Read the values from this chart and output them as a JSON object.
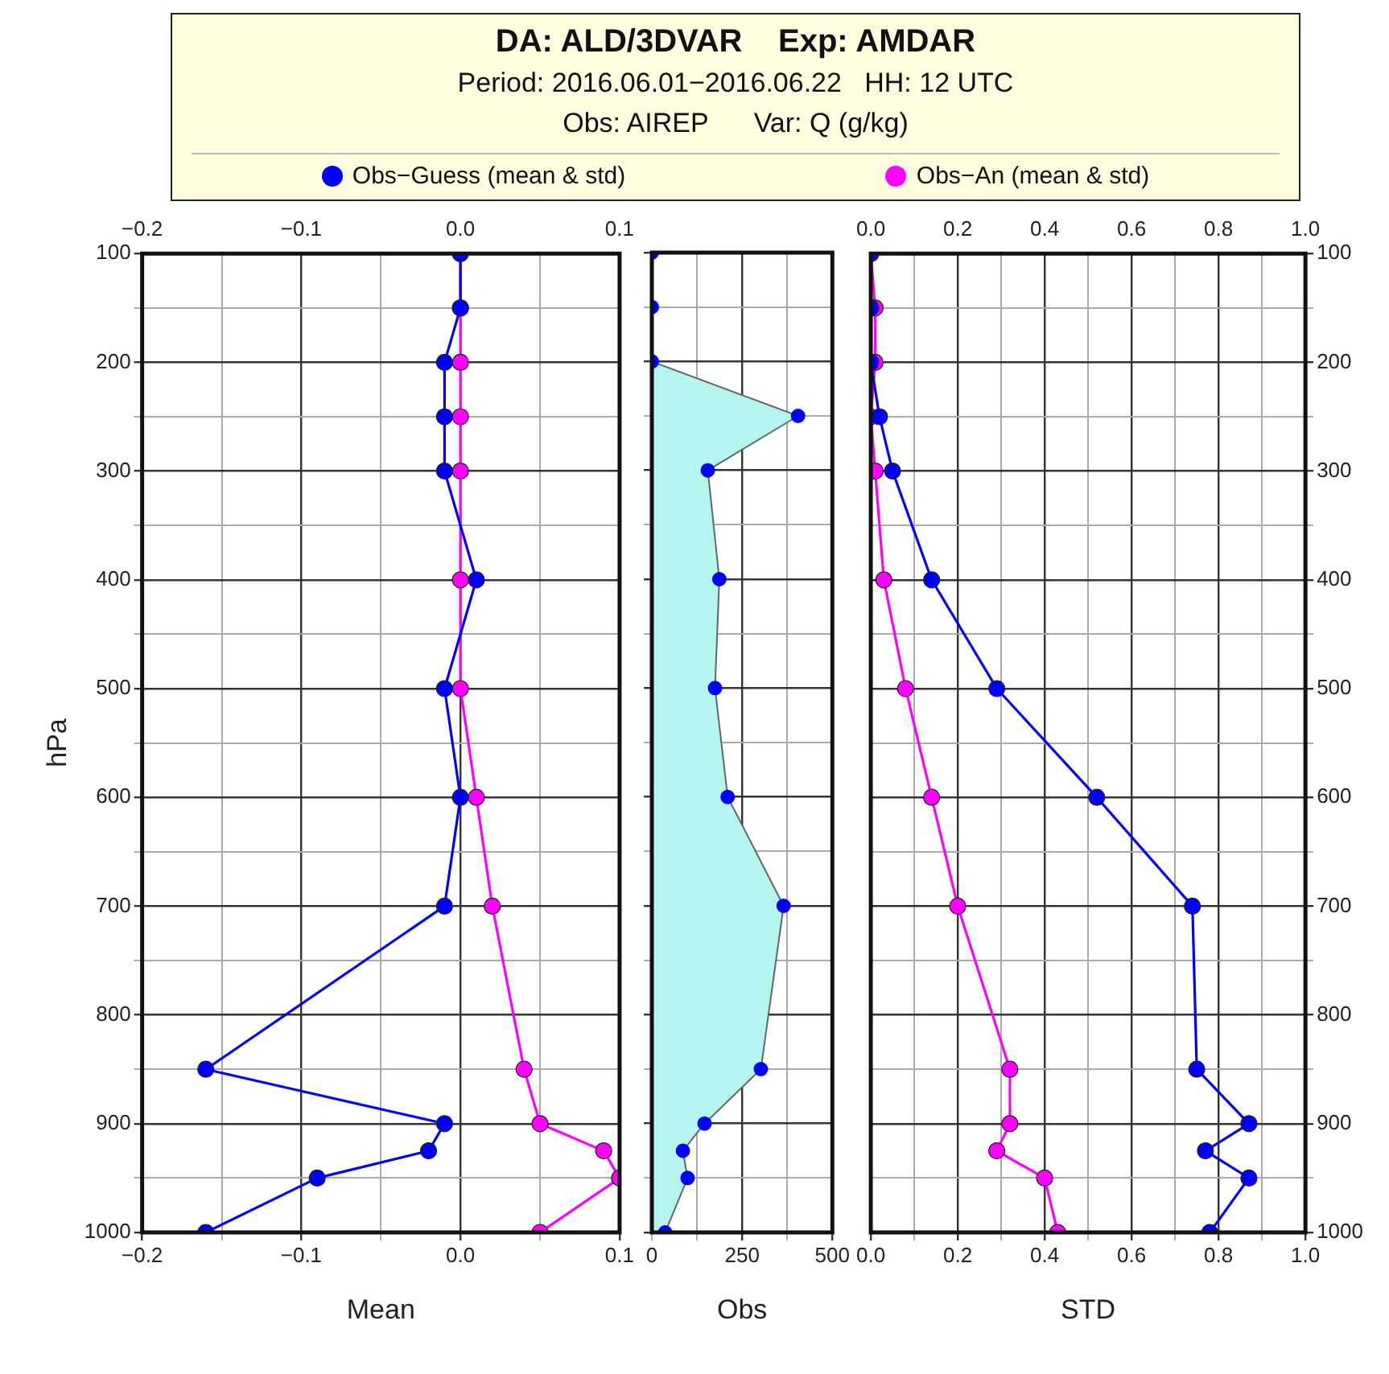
{
  "chart_data": [
    {
      "type": "line",
      "title": "DA: ALD/3DVAR    Exp: AMDAR",
      "subtitle": "Period: 2016.06.01−2016.06.22   HH: 12 UTC\nObs: AIREP      Var: Q (g/kg)",
      "xlabel": "Mean",
      "ylabel": "hPa",
      "orientation": "horizontal",
      "legend": "top",
      "marker": "circle",
      "grid": true,
      "x": [
        100,
        150,
        200,
        250,
        300,
        400,
        500,
        600,
        700,
        850,
        900,
        925,
        950,
        1000
      ],
      "series": [
        {
          "name": "Obs−Guess (mean & std)",
          "color": "#0000ff",
          "values": [
            0,
            0,
            -0.01,
            -0.01,
            -0.01,
            0.01,
            -0.01,
            0,
            -0.01,
            -0.16,
            -0.01,
            -0.02,
            -0.09,
            -0.16
          ]
        },
        {
          "name": "Obs−An (mean & std)",
          "color": "#ff00ff",
          "values": [
            0,
            0,
            0,
            0,
            0,
            0,
            0,
            0.01,
            0.02,
            0.04,
            0.05,
            0.09,
            0.1,
            0.05
          ]
        }
      ],
      "xlim": [
        -0.2,
        0.1
      ],
      "xticks": [
        {
          "value": -0.2,
          "label": "−0.2"
        },
        {
          "value": -0.15,
          "label": null
        },
        {
          "value": -0.1,
          "label": "−0.1"
        },
        {
          "value": -0.05,
          "label": null
        },
        {
          "value": 0,
          "label": "0.0"
        },
        {
          "value": 0.05,
          "label": null
        },
        0.1
      ],
      "x2lim": [
        -0.2,
        0.1
      ],
      "x2ticks": [
        {
          "value": -0.2,
          "label": "−0.2"
        },
        {
          "value": -0.15,
          "label": null
        },
        {
          "value": -0.1,
          "label": "−0.1"
        },
        {
          "value": -0.05,
          "label": null
        },
        {
          "value": 0,
          "label": "0.0"
        },
        {
          "value": 0.05,
          "label": null
        },
        0.1
      ],
      "ylim": [
        1000,
        100
      ],
      "yticks": [
        100,
        {
          "value": 150,
          "label": null
        },
        200,
        {
          "value": 250,
          "label": null
        },
        300,
        {
          "value": 350,
          "label": null
        },
        400,
        {
          "value": 450,
          "label": null
        },
        500,
        {
          "value": 550,
          "label": null
        },
        600,
        {
          "value": 650,
          "label": null
        },
        700,
        {
          "value": 750,
          "label": null
        },
        800,
        {
          "value": 850,
          "label": null
        },
        900,
        {
          "value": 950,
          "label": null
        },
        1000
      ]
    },
    {
      "type": "area",
      "xlabel": "Obs",
      "orientation": "horizontal",
      "marker": "circle",
      "grid": true,
      "tick_labels": "x",
      "x": [
        100,
        150,
        200,
        250,
        300,
        400,
        500,
        600,
        700,
        850,
        900,
        925,
        950,
        1000
      ],
      "series": [
        {
          "color": "#b4f5f0",
          "values": [
            0,
            0,
            0,
            405,
            155,
            187,
            175,
            210,
            365,
            302,
            146,
            86,
            99,
            37
          ]
        }
      ],
      "xlim": [
        0,
        500
      ],
      "xticks": [
        0,
        {
          "value": 125,
          "label": null
        },
        250,
        {
          "value": 375,
          "label": null
        },
        500
      ],
      "ylim": [
        1000,
        100
      ],
      "yticks": [
        100,
        {
          "value": 150,
          "label": null
        },
        200,
        {
          "value": 250,
          "label": null
        },
        300,
        {
          "value": 350,
          "label": null
        },
        400,
        {
          "value": 450,
          "label": null
        },
        500,
        {
          "value": 550,
          "label": null
        },
        600,
        {
          "value": 650,
          "label": null
        },
        700,
        {
          "value": 750,
          "label": null
        },
        800,
        {
          "value": 850,
          "label": null
        },
        900,
        {
          "value": 950,
          "label": null
        },
        1000
      ]
    },
    {
      "type": "line",
      "xlabel": "STD",
      "orientation": "horizontal",
      "marker": "circle",
      "grid": true,
      "x": [
        100,
        150,
        200,
        250,
        300,
        400,
        500,
        600,
        700,
        850,
        900,
        925,
        950,
        1000
      ],
      "series": [
        {
          "color": "#0000ff",
          "values": [
            0,
            0,
            0,
            0.02,
            0.05,
            0.14,
            0.29,
            0.52,
            0.74,
            0.75,
            0.87,
            0.77,
            0.87,
            0.78
          ]
        },
        {
          "color": "#ff00ff",
          "values": [
            0,
            0.01,
            0.01,
            0,
            0.01,
            0.03,
            0.08,
            0.14,
            0.2,
            0.32,
            0.32,
            0.29,
            0.4,
            0.43
          ]
        }
      ],
      "xlim": [
        0,
        1
      ],
      "xticks": [
        {
          "value": 0,
          "label": "0.0"
        },
        {
          "value": 0.1,
          "label": null
        },
        0.2,
        {
          "value": 0.3,
          "label": null
        },
        0.4,
        {
          "value": 0.5,
          "label": null
        },
        0.6,
        {
          "value": 0.7,
          "label": null
        },
        0.8,
        {
          "value": 0.9,
          "label": null
        },
        {
          "value": 1,
          "label": "1.0"
        }
      ],
      "x2lim": [
        0,
        1
      ],
      "x2ticks": [
        {
          "value": 0,
          "label": "0.0"
        },
        {
          "value": 0.1,
          "label": null
        },
        0.2,
        {
          "value": 0.3,
          "label": null
        },
        0.4,
        {
          "value": 0.5,
          "label": null
        },
        0.6,
        {
          "value": 0.7,
          "label": null
        },
        0.8,
        {
          "value": 0.9,
          "label": null
        },
        {
          "value": 1,
          "label": "1.0"
        }
      ],
      "ylim": [
        1000,
        100
      ],
      "yticks": [
        100,
        {
          "value": 150,
          "label": null
        },
        200,
        {
          "value": 250,
          "label": null
        },
        300,
        {
          "value": 350,
          "label": null
        },
        400,
        {
          "value": 450,
          "label": null
        },
        500,
        {
          "value": 550,
          "label": null
        },
        600,
        {
          "value": 650,
          "label": null
        },
        700,
        {
          "value": 750,
          "label": null
        },
        800,
        {
          "value": 850,
          "label": null
        },
        900,
        {
          "value": 950,
          "label": null
        },
        1000
      ]
    }
  ]
}
